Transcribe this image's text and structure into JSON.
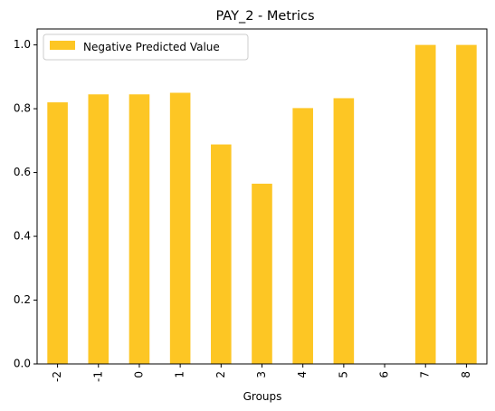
{
  "chart_data": {
    "type": "bar",
    "title": "PAY_2 - Metrics",
    "xlabel": "Groups",
    "ylabel": "",
    "categories": [
      "-2",
      "-1",
      "0",
      "1",
      "2",
      "3",
      "4",
      "5",
      "6",
      "7",
      "8"
    ],
    "series": [
      {
        "name": "Negative Predicted Value",
        "values": [
          0.82,
          0.845,
          0.845,
          0.85,
          0.688,
          0.565,
          0.802,
          0.833,
          0,
          1.0,
          1.0
        ]
      }
    ],
    "ylim": [
      0,
      1.05
    ],
    "yticks": [
      "0.0",
      "0.2",
      "0.4",
      "0.6",
      "0.8",
      "1.0"
    ],
    "legend_position": "top-left",
    "grid": false,
    "bar_color": "#fdc624"
  }
}
